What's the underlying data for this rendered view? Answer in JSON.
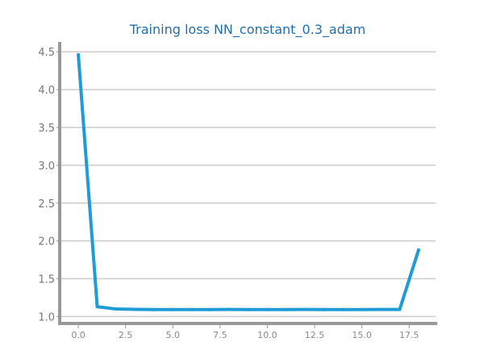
{
  "chart_data": {
    "type": "line",
    "title": "Training loss NN_constant_0.3_adam",
    "xlabel": "",
    "ylabel": "",
    "xlim": [
      -0.9,
      18.9
    ],
    "ylim": [
      0.93,
      4.63
    ],
    "x_ticks": [
      "0.0",
      "2.5",
      "5.0",
      "7.5",
      "10.0",
      "12.5",
      "15.0",
      "17.5"
    ],
    "y_ticks": [
      "1.0",
      "1.5",
      "2.0",
      "2.5",
      "3.0",
      "3.5",
      "4.0",
      "4.5"
    ],
    "grid": "horizontal",
    "colors": {
      "line": "#1f9bd6",
      "grid": "#cccccc",
      "axis": "#999999",
      "title": "#1f6fb0"
    },
    "series": [
      {
        "x": [
          0,
          1,
          2,
          3,
          4,
          5,
          6,
          7,
          8,
          9,
          10,
          11,
          12,
          13,
          14,
          15,
          16,
          17,
          18
        ],
        "values": [
          4.46,
          1.13,
          1.1,
          1.095,
          1.093,
          1.093,
          1.092,
          1.092,
          1.094,
          1.092,
          1.092,
          1.093,
          1.094,
          1.092,
          1.093,
          1.092,
          1.094,
          1.094,
          1.88
        ]
      }
    ]
  }
}
